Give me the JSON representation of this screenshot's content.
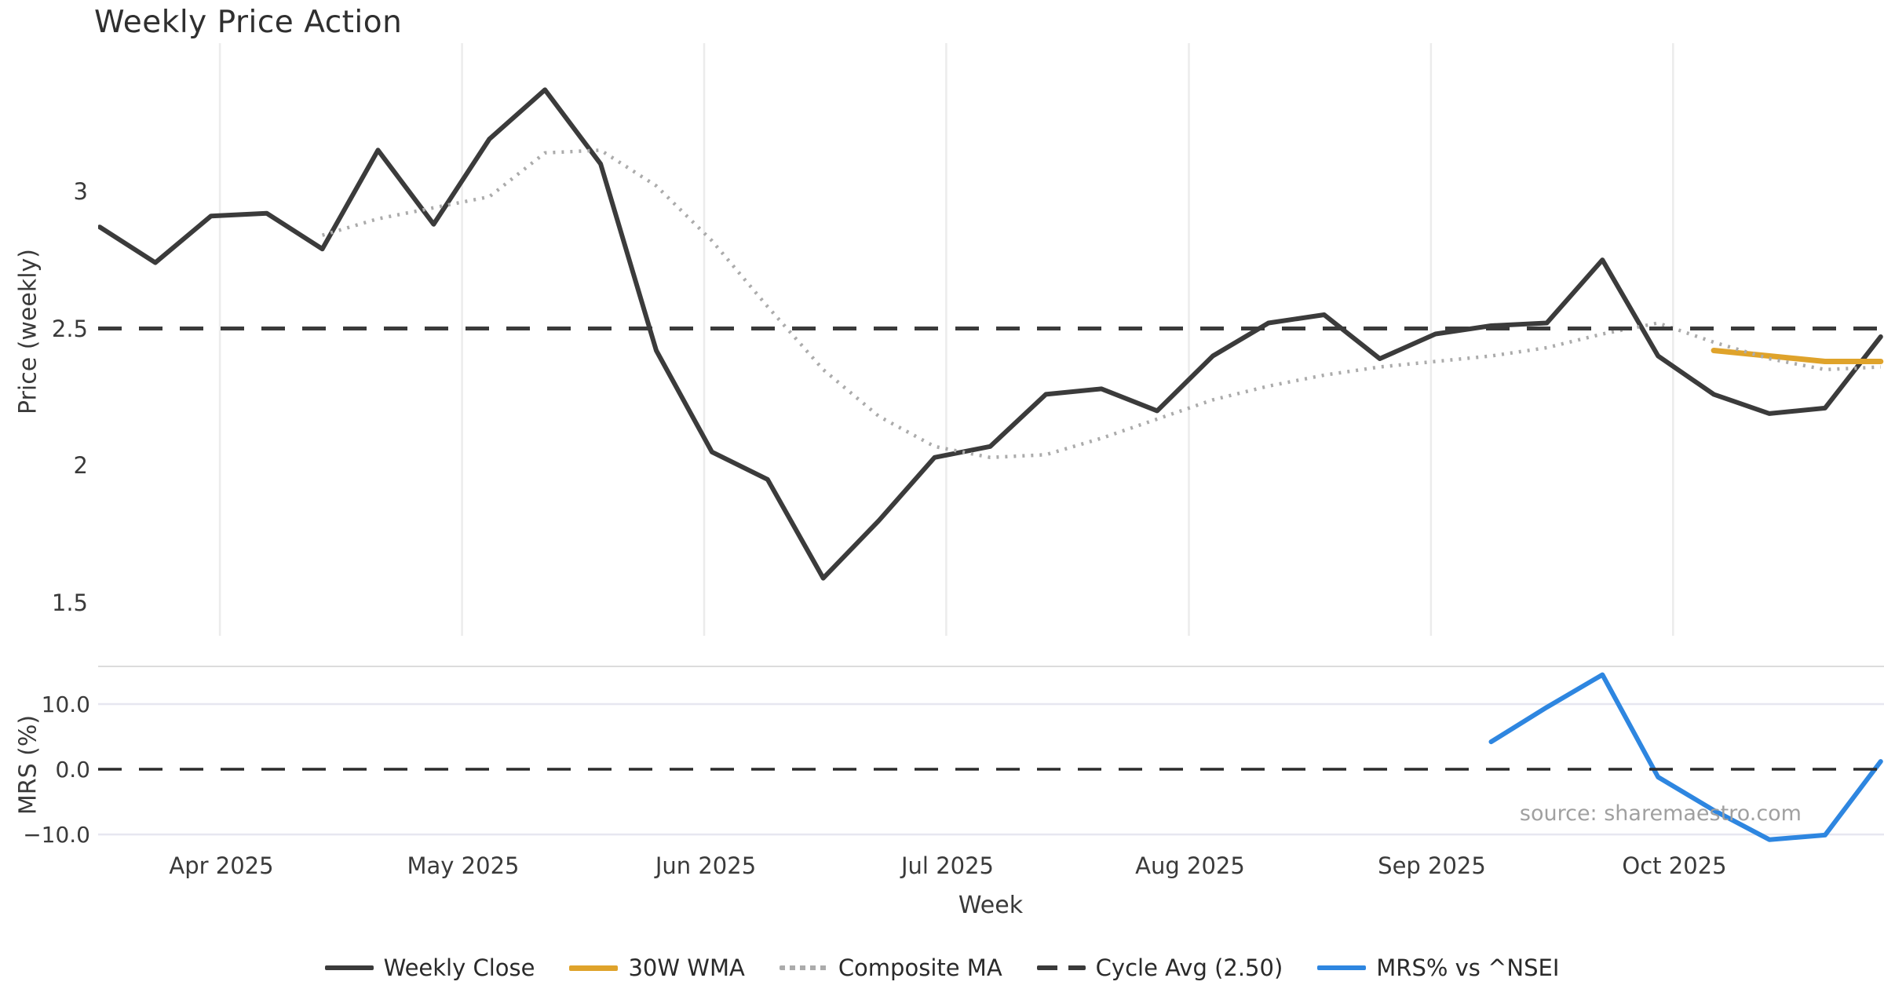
{
  "title": "Weekly Price Action",
  "source_note": "source: sharemaestro.com",
  "x_axis": {
    "label": "Week"
  },
  "colors": {
    "weekly_close": "#3b3b3b",
    "wma_30w": "#dfa32b",
    "composite_ma": "#ababab",
    "cycle_avg": "#3a3a3a",
    "mrs": "#2e86e0",
    "month_grid": "#ececec",
    "mrs_grid": "#e7e7f0",
    "panel_border": "#dcdcdc",
    "muted_text": "#a0a0a0"
  },
  "legend": [
    {
      "label": "Weekly Close",
      "color": "#3b3b3b",
      "style": "solid"
    },
    {
      "label": "30W WMA",
      "color": "#dfa32b",
      "style": "solid"
    },
    {
      "label": "Composite MA",
      "color": "#ababab",
      "style": "dotted"
    },
    {
      "label": "Cycle Avg (2.50)",
      "color": "#3a3a3a",
      "style": "dashed"
    },
    {
      "label": "MRS% vs ^NSEI",
      "color": "#2e86e0",
      "style": "solid"
    }
  ],
  "chart_data": [
    {
      "type": "line",
      "panel": "price",
      "title": "Weekly Price Action",
      "xlabel": "Week",
      "ylabel": "Price (weekly)",
      "x_unit": "week_index",
      "ylim": [
        1.38,
        3.54
      ],
      "grid": "vertical-months",
      "legend_position": "bottom",
      "y_ticks": [
        {
          "label": "3",
          "value": 3.0
        },
        {
          "label": "2.5",
          "value": 2.5
        },
        {
          "label": "2",
          "value": 2.0
        },
        {
          "label": "1.5",
          "value": 1.5
        }
      ],
      "x_ticks": [
        {
          "label": "Apr 2025",
          "week": 2.16
        },
        {
          "label": "May 2025",
          "week": 6.51
        },
        {
          "label": "Jun 2025",
          "week": 10.86
        },
        {
          "label": "Jul 2025",
          "week": 15.21
        },
        {
          "label": "Aug 2025",
          "week": 19.57
        },
        {
          "label": "Sep 2025",
          "week": 23.92
        },
        {
          "label": "Oct 2025",
          "week": 28.27
        }
      ],
      "series": [
        {
          "name": "Weekly Close",
          "color": "#3b3b3b",
          "line_style": "solid",
          "start_week": 0,
          "values": [
            2.87,
            2.74,
            2.91,
            2.92,
            2.79,
            3.15,
            2.88,
            3.19,
            3.37,
            3.1,
            2.42,
            2.05,
            1.95,
            1.59,
            1.8,
            2.03,
            2.07,
            2.26,
            2.28,
            2.2,
            2.4,
            2.52,
            2.55,
            2.39,
            2.48,
            2.51,
            2.52,
            2.75,
            2.4,
            2.26,
            2.19,
            2.21,
            2.47
          ]
        },
        {
          "name": "30W WMA",
          "color": "#dfa32b",
          "line_style": "solid",
          "start_week": 29,
          "values": [
            2.42,
            2.4,
            2.38,
            2.38
          ]
        },
        {
          "name": "Composite MA",
          "color": "#ababab",
          "line_style": "dotted",
          "start_week": 4,
          "values": [
            2.84,
            2.9,
            2.94,
            2.98,
            3.14,
            3.15,
            3.02,
            2.82,
            2.58,
            2.35,
            2.18,
            2.07,
            2.03,
            2.04,
            2.1,
            2.17,
            2.24,
            2.29,
            2.33,
            2.36,
            2.38,
            2.4,
            2.43,
            2.48,
            2.52,
            2.45,
            2.39,
            2.35,
            2.36
          ]
        },
        {
          "name": "Cycle Avg (2.50)",
          "type": "hline",
          "value": 2.5,
          "color": "#3a3a3a",
          "line_style": "dashed"
        }
      ]
    },
    {
      "type": "line",
      "panel": "mrs",
      "xlabel": "Week",
      "ylabel": "MRS (%)",
      "x_unit": "week_index",
      "ylim": [
        -11.8,
        15.9
      ],
      "hgrid": [
        10,
        -10
      ],
      "y_ticks": [
        {
          "label": "10.0",
          "value": 10.0
        },
        {
          "label": "0.0",
          "value": 0.0
        },
        {
          "label": "−10.0",
          "value": -10.0
        }
      ],
      "series": [
        {
          "name": "MRS% vs ^NSEI",
          "color": "#2e86e0",
          "line_style": "solid",
          "start_week": 25,
          "values": [
            4.2,
            9.5,
            14.5,
            -1.2,
            -6.3,
            -10.8,
            -10.1,
            1.2
          ]
        },
        {
          "name": "Zero Line",
          "type": "hline",
          "value": 0.0,
          "color": "#2b2b2b",
          "line_style": "dashed"
        }
      ]
    }
  ]
}
